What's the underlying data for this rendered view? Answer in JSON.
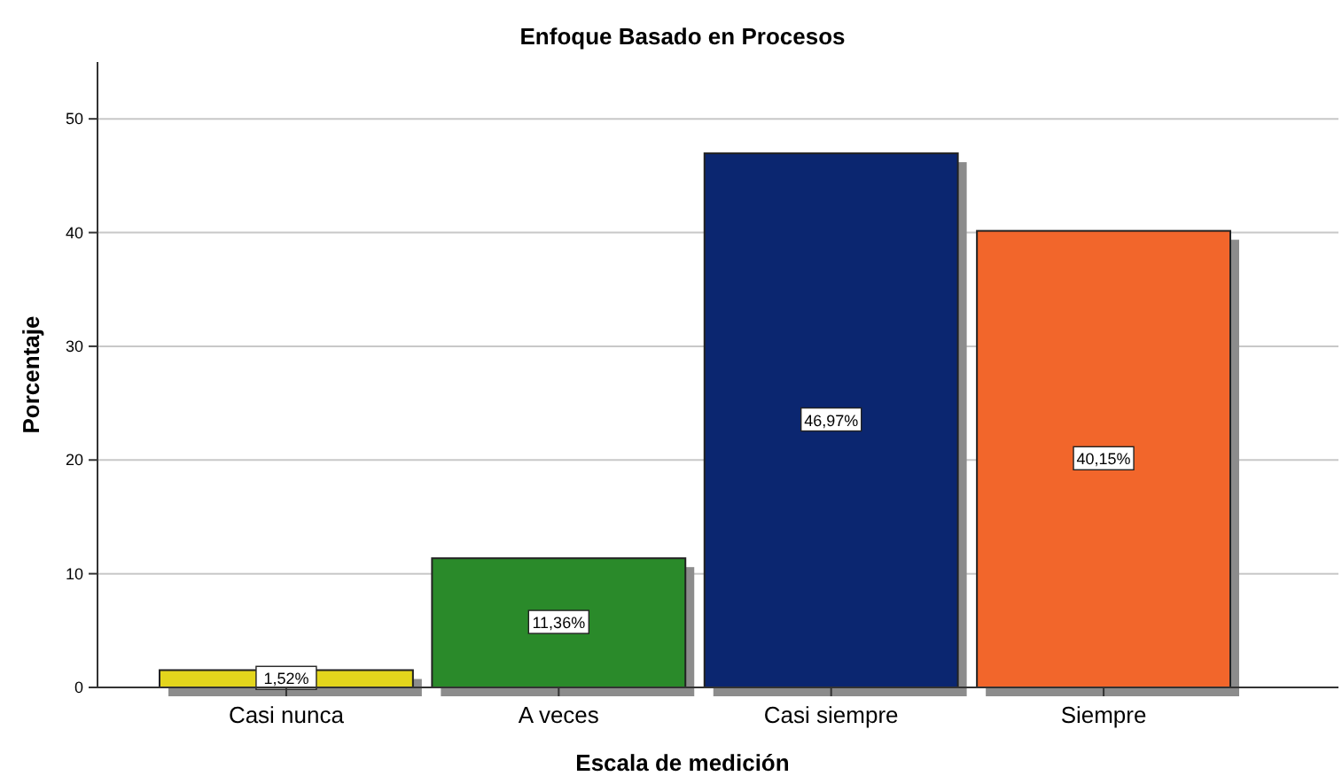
{
  "chart_data": {
    "type": "bar",
    "title": "Enfoque Basado en Procesos",
    "xlabel": "Escala de medición",
    "ylabel": "Porcentaje",
    "categories": [
      "Casi nunca",
      "A veces",
      "Casi siempre",
      "Siempre"
    ],
    "values": [
      1.52,
      11.36,
      46.97,
      40.15
    ],
    "colors": [
      "#e3d51c",
      "#2a8a2a",
      "#0b2670",
      "#f2662b"
    ],
    "value_labels": [
      "1,52%",
      "11,36%",
      "46,97%",
      "40,15%"
    ],
    "ylim": [
      0,
      55
    ],
    "yticks": [
      0,
      10,
      20,
      30,
      40,
      50
    ],
    "grid": "y"
  }
}
